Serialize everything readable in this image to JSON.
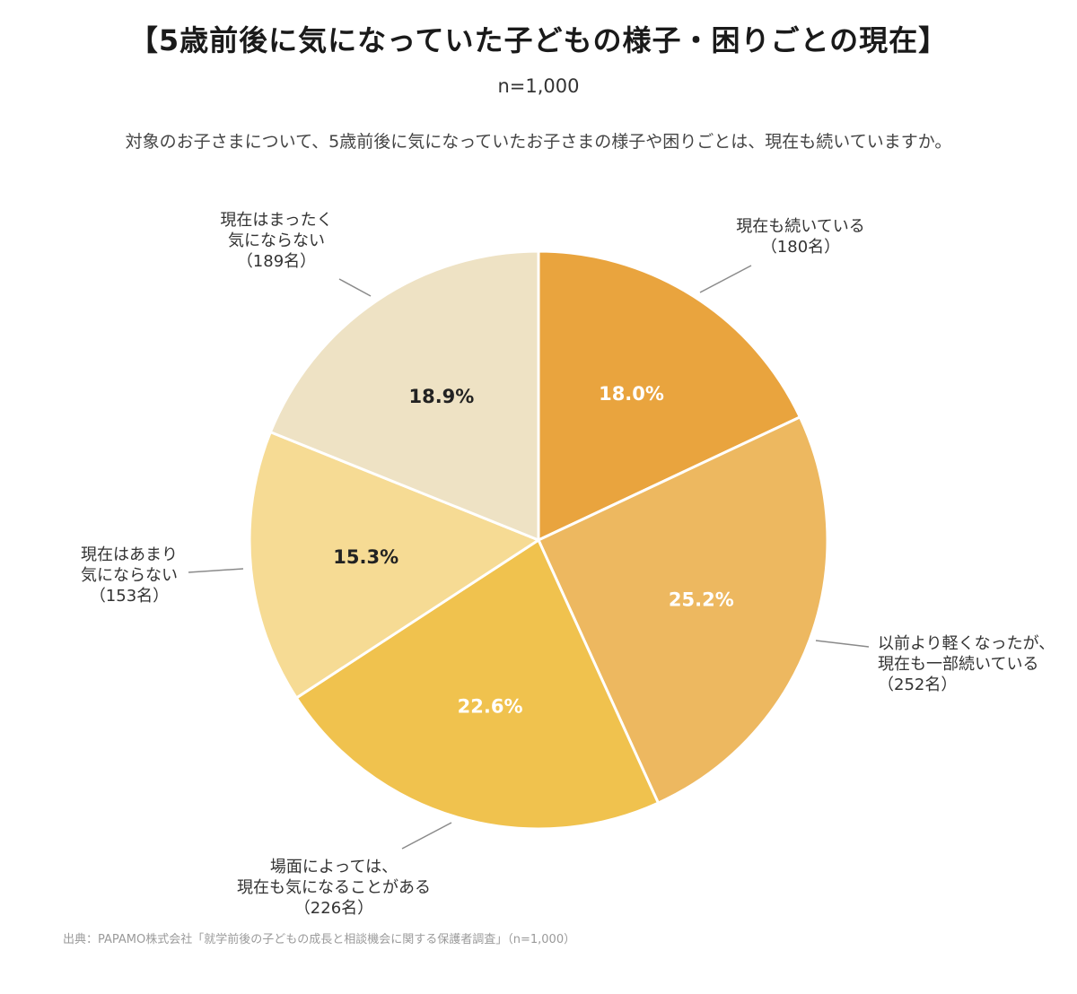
{
  "header": {
    "title": "【5歳前後に気になっていた子どもの様子・困りごとの現在】",
    "sample": "n=1,000",
    "question": "対象のお子さまについて、5歳前後に気になっていたお子さまの様子や困りごとは、現在も続いていますか。"
  },
  "footer": {
    "source": "出典：PAPAMO株式会社「就学前後の子どもの成長と相談機会に関する保護者調査」（n=1,000）"
  },
  "chart_data": {
    "type": "pie",
    "title": "【5歳前後に気になっていた子どもの様子・困りごとの現在】",
    "n": 1000,
    "slices": [
      {
        "label_lines": [
          "現在も続いている",
          "（180名）"
        ],
        "count": 180,
        "percent": 18.0,
        "percent_label": "18.0%",
        "color": "#E9A43E",
        "pct_color": "#ffffff"
      },
      {
        "label_lines": [
          "以前より軽くなったが、",
          "現在も一部続いている",
          "（252名）"
        ],
        "count": 252,
        "percent": 25.2,
        "percent_label": "25.2%",
        "color": "#EDB860",
        "pct_color": "#ffffff"
      },
      {
        "label_lines": [
          "場面によっては、",
          "現在も気になることがある",
          "（226名）"
        ],
        "count": 226,
        "percent": 22.6,
        "percent_label": "22.6%",
        "color": "#F0C24E",
        "pct_color": "#ffffff"
      },
      {
        "label_lines": [
          "現在はあまり",
          "気にならない",
          "（153名）"
        ],
        "count": 153,
        "percent": 15.3,
        "percent_label": "15.3%",
        "color": "#F6DB94",
        "pct_color": "#222222"
      },
      {
        "label_lines": [
          "現在はまったく",
          "気にならない",
          "（189名）"
        ],
        "count": 189,
        "percent": 18.9,
        "percent_label": "18.9%",
        "color": "#EEE2C4",
        "pct_color": "#222222"
      }
    ]
  }
}
